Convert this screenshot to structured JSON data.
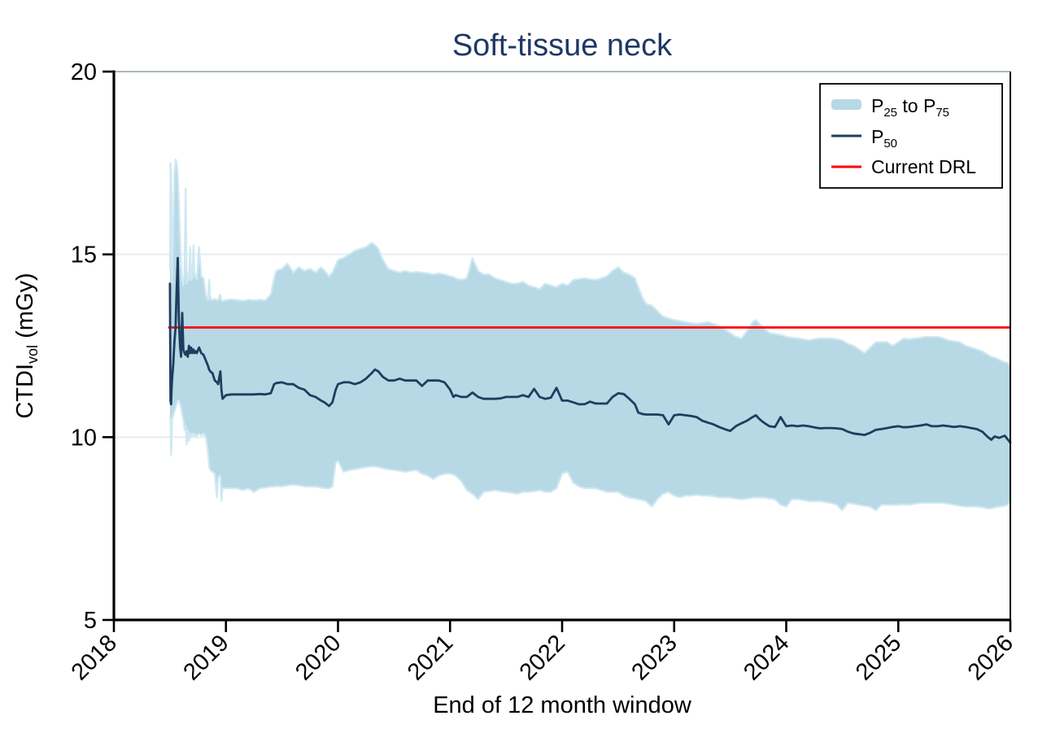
{
  "page": {
    "title": "Soft-tissue neck"
  },
  "colors": {
    "band": "#b7d9e5",
    "band_edge": "#cfe8f2",
    "median": "#1e3d5f",
    "drl": "#fb0006",
    "title": "#1f3864",
    "grid": "#e4edf1",
    "top_border": "#aab8bf",
    "axis": "#000000",
    "text": "#000000",
    "legend_border": "#000000",
    "background": "#ffffff"
  },
  "axis": {
    "ylabel_pre": "CTDI",
    "ylabel_sub": "vol",
    "ylabel_post": " (mGy)",
    "xlabel": "End of 12 month window"
  },
  "legend": {
    "band_p": "P",
    "band_sub1": "25",
    "band_mid": " to P",
    "band_sub2": "75",
    "median_p": "P",
    "median_sub": "50",
    "drl_label": "Current DRL"
  },
  "chart_data": {
    "type": "area",
    "title": "Soft-tissue neck",
    "xlabel": "End of 12 month window",
    "ylabel": "CTDIvol (mGy)",
    "xlim": [
      2018,
      2026
    ],
    "ylim": [
      5,
      20
    ],
    "yticks": [
      5,
      10,
      15,
      20
    ],
    "xticks": [
      2018,
      2019,
      2020,
      2021,
      2022,
      2023,
      2024,
      2025,
      2026
    ],
    "gridlines_y": [
      10,
      15
    ],
    "grid": true,
    "legend_position": "top-right",
    "drl_value": 13,
    "series": [
      {
        "name": "P25 to P75",
        "type": "band"
      },
      {
        "name": "P50",
        "type": "line"
      },
      {
        "name": "Current DRL",
        "type": "hline",
        "value": 13
      }
    ],
    "x": [
      2018.5,
      2018.505,
      2018.51,
      2018.515,
      2018.52,
      2018.53,
      2018.54,
      2018.55,
      2018.56,
      2018.57,
      2018.58,
      2018.59,
      2018.6,
      2018.61,
      2018.62,
      2018.63,
      2018.64,
      2018.65,
      2018.66,
      2018.67,
      2018.68,
      2018.69,
      2018.7,
      2018.71,
      2018.72,
      2018.73,
      2018.74,
      2018.76,
      2018.78,
      2018.8,
      2018.82,
      2018.84,
      2018.85,
      2018.86,
      2018.88,
      2018.9,
      2018.92,
      2018.93,
      2018.95,
      2018.96,
      2018.97,
      2019.0,
      2019.05,
      2019.1,
      2019.15,
      2019.2,
      2019.25,
      2019.3,
      2019.35,
      2019.4,
      2019.43,
      2019.45,
      2019.5,
      2019.55,
      2019.6,
      2019.65,
      2019.7,
      2019.75,
      2019.8,
      2019.85,
      2019.88,
      2019.92,
      2019.95,
      2019.98,
      2020.0,
      2020.05,
      2020.1,
      2020.15,
      2020.2,
      2020.25,
      2020.3,
      2020.33,
      2020.36,
      2020.4,
      2020.45,
      2020.5,
      2020.55,
      2020.6,
      2020.65,
      2020.7,
      2020.75,
      2020.8,
      2020.85,
      2020.9,
      2020.95,
      2021.0,
      2021.03,
      2021.05,
      2021.1,
      2021.15,
      2021.2,
      2021.25,
      2021.3,
      2021.35,
      2021.4,
      2021.45,
      2021.5,
      2021.55,
      2021.6,
      2021.65,
      2021.7,
      2021.75,
      2021.8,
      2021.85,
      2021.9,
      2021.95,
      2022.0,
      2022.05,
      2022.1,
      2022.15,
      2022.2,
      2022.25,
      2022.3,
      2022.35,
      2022.4,
      2022.45,
      2022.5,
      2022.55,
      2022.6,
      2022.65,
      2022.68,
      2022.72,
      2022.75,
      2022.8,
      2022.85,
      2022.9,
      2022.95,
      2023.0,
      2023.05,
      2023.1,
      2023.15,
      2023.2,
      2023.25,
      2023.3,
      2023.35,
      2023.4,
      2023.45,
      2023.5,
      2023.55,
      2023.6,
      2023.65,
      2023.7,
      2023.73,
      2023.76,
      2023.8,
      2023.85,
      2023.9,
      2023.95,
      2024.0,
      2024.05,
      2024.1,
      2024.15,
      2024.2,
      2024.25,
      2024.3,
      2024.35,
      2024.4,
      2024.45,
      2024.5,
      2024.55,
      2024.6,
      2024.65,
      2024.7,
      2024.75,
      2024.8,
      2024.85,
      2024.9,
      2024.95,
      2025.0,
      2025.05,
      2025.1,
      2025.15,
      2025.2,
      2025.25,
      2025.3,
      2025.35,
      2025.4,
      2025.45,
      2025.5,
      2025.55,
      2025.6,
      2025.65,
      2025.7,
      2025.75,
      2025.8,
      2025.83,
      2025.86,
      2025.9,
      2025.95,
      2026.0
    ],
    "p25": [
      10.6,
      10.4,
      9.5,
      9.8,
      10.5,
      10.6,
      10.7,
      10.8,
      10.9,
      11.0,
      11.0,
      10.9,
      10.8,
      10.6,
      10.5,
      10.2,
      10.3,
      9.8,
      10.2,
      9.9,
      10.1,
      10.0,
      10.1,
      10.05,
      10.1,
      10.0,
      10.05,
      10.1,
      10.05,
      10.1,
      10.0,
      9.6,
      9.2,
      9.1,
      9.05,
      9.0,
      8.35,
      8.9,
      8.95,
      8.25,
      8.6,
      8.6,
      8.6,
      8.6,
      8.55,
      8.6,
      8.5,
      8.6,
      8.62,
      8.65,
      8.65,
      8.66,
      8.65,
      8.68,
      8.7,
      8.68,
      8.65,
      8.65,
      8.65,
      8.62,
      8.6,
      8.6,
      8.65,
      9.3,
      9.35,
      9.05,
      9.1,
      9.12,
      9.15,
      9.18,
      9.2,
      9.2,
      9.18,
      9.15,
      9.12,
      9.1,
      9.08,
      9.05,
      9.08,
      9.1,
      9.0,
      8.95,
      8.85,
      8.95,
      9.0,
      9.0,
      8.98,
      8.95,
      8.8,
      8.55,
      8.45,
      8.3,
      8.5,
      8.52,
      8.55,
      8.52,
      8.5,
      8.48,
      8.45,
      8.5,
      8.5,
      8.52,
      8.55,
      8.5,
      8.5,
      8.6,
      9.0,
      9.05,
      8.75,
      8.65,
      8.6,
      8.6,
      8.6,
      8.55,
      8.5,
      8.5,
      8.5,
      8.4,
      8.35,
      8.32,
      8.3,
      8.28,
      8.25,
      8.1,
      8.3,
      8.45,
      8.5,
      8.4,
      8.35,
      8.4,
      8.4,
      8.42,
      8.4,
      8.4,
      8.38,
      8.35,
      8.35,
      8.35,
      8.32,
      8.3,
      8.32,
      8.35,
      8.35,
      8.35,
      8.35,
      8.32,
      8.3,
      8.15,
      8.1,
      8.3,
      8.3,
      8.28,
      8.25,
      8.25,
      8.25,
      8.22,
      8.2,
      8.15,
      8.0,
      8.2,
      8.18,
      8.15,
      8.12,
      8.1,
      8.0,
      8.15,
      8.15,
      8.15,
      8.15,
      8.16,
      8.15,
      8.18,
      8.2,
      8.2,
      8.2,
      8.2,
      8.2,
      8.18,
      8.15,
      8.12,
      8.1,
      8.1,
      8.1,
      8.08,
      8.05,
      8.05,
      8.08,
      8.1,
      8.12,
      8.2
    ],
    "p50": [
      14.2,
      11.0,
      10.9,
      11.3,
      11.6,
      12.0,
      12.6,
      13.0,
      14.0,
      14.9,
      13.2,
      12.5,
      12.2,
      13.4,
      12.4,
      12.3,
      12.25,
      12.35,
      12.2,
      12.5,
      12.3,
      12.45,
      12.3,
      12.4,
      12.3,
      12.35,
      12.3,
      12.45,
      12.3,
      12.25,
      12.1,
      11.95,
      11.85,
      11.8,
      11.75,
      11.55,
      11.5,
      11.45,
      11.8,
      11.3,
      11.05,
      11.15,
      11.17,
      11.17,
      11.17,
      11.17,
      11.17,
      11.18,
      11.17,
      11.2,
      11.45,
      11.48,
      11.5,
      11.45,
      11.45,
      11.35,
      11.3,
      11.15,
      11.1,
      11.0,
      10.95,
      10.85,
      10.95,
      11.3,
      11.45,
      11.5,
      11.5,
      11.45,
      11.5,
      11.6,
      11.75,
      11.85,
      11.8,
      11.65,
      11.55,
      11.55,
      11.6,
      11.55,
      11.55,
      11.55,
      11.4,
      11.55,
      11.55,
      11.55,
      11.5,
      11.3,
      11.1,
      11.15,
      11.1,
      11.1,
      11.22,
      11.1,
      11.05,
      11.05,
      11.05,
      11.06,
      11.1,
      11.1,
      11.1,
      11.15,
      11.1,
      11.32,
      11.1,
      11.05,
      11.08,
      11.35,
      11.0,
      11.0,
      10.95,
      10.9,
      10.9,
      10.97,
      10.92,
      10.92,
      10.92,
      11.1,
      11.2,
      11.18,
      11.05,
      10.9,
      10.67,
      10.63,
      10.62,
      10.62,
      10.62,
      10.6,
      10.35,
      10.6,
      10.62,
      10.6,
      10.58,
      10.55,
      10.45,
      10.4,
      10.35,
      10.28,
      10.22,
      10.17,
      10.3,
      10.38,
      10.45,
      10.55,
      10.6,
      10.5,
      10.4,
      10.3,
      10.28,
      10.55,
      10.3,
      10.32,
      10.3,
      10.32,
      10.3,
      10.27,
      10.24,
      10.25,
      10.25,
      10.24,
      10.22,
      10.15,
      10.1,
      10.08,
      10.06,
      10.12,
      10.2,
      10.22,
      10.25,
      10.28,
      10.3,
      10.27,
      10.28,
      10.3,
      10.32,
      10.35,
      10.3,
      10.3,
      10.32,
      10.3,
      10.28,
      10.3,
      10.28,
      10.25,
      10.22,
      10.15,
      10.0,
      9.93,
      10.02,
      9.98,
      10.04,
      9.85
    ],
    "p75": [
      14.6,
      17.5,
      17.3,
      16.6,
      14.2,
      15.6,
      17.2,
      17.6,
      17.5,
      17.2,
      16.4,
      15.5,
      14.7,
      14.3,
      14.15,
      14.5,
      16.8,
      14.2,
      14.5,
      14.3,
      15.2,
      14.3,
      14.35,
      15.25,
      14.4,
      14.45,
      14.3,
      15.2,
      14.4,
      14.35,
      13.9,
      13.75,
      14.3,
      13.8,
      13.75,
      13.78,
      13.75,
      13.75,
      13.9,
      13.75,
      13.72,
      13.75,
      13.77,
      13.75,
      13.73,
      13.76,
      13.74,
      13.76,
      13.74,
      13.9,
      14.35,
      14.55,
      14.6,
      14.75,
      14.5,
      14.65,
      14.55,
      14.6,
      14.5,
      14.65,
      14.55,
      14.4,
      14.5,
      14.7,
      14.85,
      14.9,
      15.0,
      15.1,
      15.15,
      15.2,
      15.32,
      15.25,
      15.15,
      14.85,
      14.6,
      14.55,
      14.5,
      14.55,
      14.5,
      14.52,
      14.5,
      14.48,
      14.45,
      14.48,
      14.45,
      14.4,
      14.38,
      14.35,
      14.3,
      14.35,
      14.9,
      14.55,
      14.45,
      14.45,
      14.35,
      14.3,
      14.25,
      14.2,
      14.2,
      14.25,
      14.15,
      14.1,
      14.05,
      14.2,
      14.15,
      14.1,
      14.2,
      14.15,
      14.3,
      14.32,
      14.35,
      14.32,
      14.3,
      14.35,
      14.4,
      14.55,
      14.65,
      14.5,
      14.45,
      14.35,
      14.1,
      13.8,
      13.65,
      13.6,
      13.45,
      13.3,
      13.25,
      13.2,
      13.18,
      13.15,
      13.12,
      13.1,
      13.12,
      13.15,
      13.1,
      13.05,
      12.95,
      12.85,
      12.75,
      12.7,
      12.9,
      13.15,
      13.2,
      13.1,
      13.0,
      12.85,
      12.82,
      12.8,
      12.75,
      12.72,
      12.7,
      12.68,
      12.65,
      12.68,
      12.7,
      12.7,
      12.7,
      12.68,
      12.65,
      12.55,
      12.5,
      12.4,
      12.3,
      12.45,
      12.6,
      12.6,
      12.6,
      12.5,
      12.6,
      12.7,
      12.68,
      12.7,
      12.72,
      12.75,
      12.74,
      12.75,
      12.7,
      12.65,
      12.62,
      12.6,
      12.5,
      12.45,
      12.4,
      12.35,
      12.25,
      12.2,
      12.18,
      12.12,
      12.05,
      12.0
    ]
  }
}
